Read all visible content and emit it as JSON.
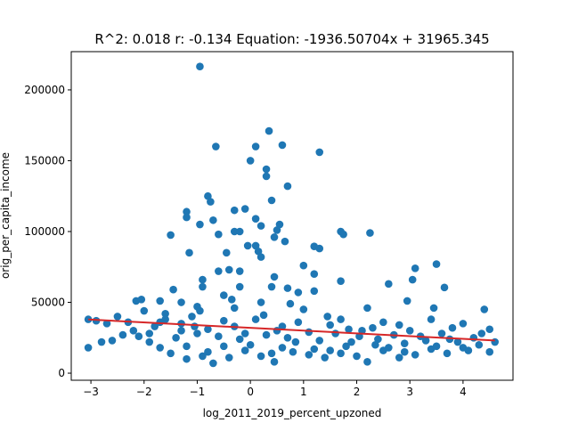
{
  "chart_data": {
    "type": "scatter",
    "title": "R^2: 0.018 r: -0.134 Equation: -1936.50704x + 31965.345",
    "xlabel": "log_2011_2019_percent_upzoned",
    "ylabel": "orig_per_capita_income",
    "xlim": [
      -3.37,
      4.94
    ],
    "ylim": [
      -5000,
      227000
    ],
    "x_ticks": [
      -3,
      -2,
      -1,
      0,
      1,
      2,
      3,
      4
    ],
    "x_tick_labels": [
      "−3",
      "−2",
      "−1",
      "0",
      "1",
      "2",
      "3",
      "4"
    ],
    "y_ticks": [
      0,
      50000,
      100000,
      150000,
      200000
    ],
    "y_tick_labels": [
      "0",
      "50000",
      "100000",
      "150000",
      "200000"
    ],
    "grid": false,
    "legend": "none",
    "colors": {
      "points": "#1f77b4",
      "regression_line": "#d62728"
    },
    "regression": {
      "slope": -1936.50704,
      "intercept": 31965.345,
      "x_range": [
        -3.05,
        4.6
      ]
    },
    "series": [
      {
        "points": [
          [
            -0.95,
            216500
          ],
          [
            -0.65,
            160000
          ],
          [
            0.1,
            160000
          ],
          [
            0.35,
            171000
          ],
          [
            0.6,
            161000
          ],
          [
            0.0,
            150000
          ],
          [
            0.3,
            144000
          ],
          [
            0.3,
            139000
          ],
          [
            1.3,
            156000
          ],
          [
            0.7,
            132000
          ],
          [
            -0.8,
            125000
          ],
          [
            -0.75,
            121000
          ],
          [
            0.4,
            122000
          ],
          [
            -1.2,
            114000
          ],
          [
            -1.2,
            110000
          ],
          [
            -0.7,
            108000
          ],
          [
            -0.3,
            115000
          ],
          [
            -0.1,
            116000
          ],
          [
            0.1,
            109000
          ],
          [
            0.2,
            104000
          ],
          [
            0.55,
            105000
          ],
          [
            -1.5,
            97500
          ],
          [
            -0.95,
            105000
          ],
          [
            -0.6,
            98000
          ],
          [
            -0.3,
            100000
          ],
          [
            -0.2,
            100000
          ],
          [
            0.5,
            101000
          ],
          [
            1.7,
            100000
          ],
          [
            1.75,
            98000
          ],
          [
            2.25,
            99000
          ],
          [
            -0.05,
            90000
          ],
          [
            0.1,
            90000
          ],
          [
            0.45,
            96000
          ],
          [
            0.65,
            93000
          ],
          [
            1.2,
            89500
          ],
          [
            1.3,
            88000
          ],
          [
            -1.15,
            85000
          ],
          [
            -0.45,
            85000
          ],
          [
            0.15,
            86000
          ],
          [
            0.2,
            82000
          ],
          [
            1.0,
            76000
          ],
          [
            3.1,
            74000
          ],
          [
            3.5,
            77000
          ],
          [
            -0.6,
            72000
          ],
          [
            -0.4,
            73000
          ],
          [
            -0.2,
            72000
          ],
          [
            1.2,
            70000
          ],
          [
            3.05,
            66000
          ],
          [
            -0.9,
            66000
          ],
          [
            0.45,
            68000
          ],
          [
            1.7,
            65000
          ],
          [
            2.6,
            63000
          ],
          [
            3.65,
            60500
          ],
          [
            -1.45,
            59000
          ],
          [
            -0.9,
            61000
          ],
          [
            -0.2,
            61000
          ],
          [
            0.4,
            61000
          ],
          [
            0.7,
            60000
          ],
          [
            1.2,
            58000
          ],
          [
            -1.7,
            51000
          ],
          [
            -2.15,
            51000
          ],
          [
            -2.05,
            52000
          ],
          [
            -1.3,
            50000
          ],
          [
            -0.5,
            55000
          ],
          [
            0.9,
            57000
          ],
          [
            2.95,
            51000
          ],
          [
            -3.05,
            38000
          ],
          [
            -2.9,
            37000
          ],
          [
            -2.7,
            35000
          ],
          [
            -2.5,
            40000
          ],
          [
            -2.3,
            36000
          ],
          [
            -2.0,
            44000
          ],
          [
            -1.6,
            42000
          ],
          [
            -1.0,
            47000
          ],
          [
            -0.3,
            46000
          ],
          [
            0.2,
            50000
          ],
          [
            1.0,
            45000
          ],
          [
            1.7,
            38000
          ],
          [
            2.2,
            46000
          ],
          [
            2.5,
            36000
          ],
          [
            3.45,
            46000
          ],
          [
            3.4,
            38000
          ],
          [
            3.8,
            32000
          ],
          [
            4.0,
            35000
          ],
          [
            4.4,
            45000
          ],
          [
            4.5,
            31000
          ],
          [
            -3.05,
            18000
          ],
          [
            -2.8,
            22000
          ],
          [
            -2.6,
            23000
          ],
          [
            -2.4,
            27000
          ],
          [
            -2.1,
            26000
          ],
          [
            -1.9,
            22000
          ],
          [
            -1.7,
            18000
          ],
          [
            -1.5,
            14000
          ],
          [
            -1.2,
            10000
          ],
          [
            -0.9,
            12000
          ],
          [
            -0.7,
            7000
          ],
          [
            -0.4,
            11000
          ],
          [
            -0.1,
            16000
          ],
          [
            0.2,
            12000
          ],
          [
            0.45,
            8000
          ],
          [
            0.8,
            15000
          ],
          [
            1.1,
            13000
          ],
          [
            1.4,
            11000
          ],
          [
            1.7,
            14000
          ],
          [
            2.0,
            12000
          ],
          [
            2.2,
            8000
          ],
          [
            2.5,
            16000
          ],
          [
            2.8,
            11000
          ],
          [
            3.1,
            13000
          ],
          [
            3.4,
            17000
          ],
          [
            3.7,
            14000
          ],
          [
            4.0,
            18000
          ],
          [
            4.3,
            20000
          ],
          [
            4.5,
            15000
          ],
          [
            4.6,
            22000
          ],
          [
            -1.4,
            25000
          ],
          [
            -1.0,
            28000
          ],
          [
            -0.6,
            26000
          ],
          [
            -0.2,
            24000
          ],
          [
            0.3,
            27000
          ],
          [
            0.7,
            25000
          ],
          [
            1.3,
            23000
          ],
          [
            1.9,
            22000
          ],
          [
            2.4,
            24000
          ],
          [
            2.9,
            21000
          ],
          [
            3.3,
            23000
          ],
          [
            3.9,
            22000
          ],
          [
            -1.8,
            33000
          ],
          [
            -1.3,
            35000
          ],
          [
            -0.8,
            31000
          ],
          [
            -0.3,
            33000
          ],
          [
            0.5,
            30000
          ],
          [
            1.1,
            29000
          ],
          [
            1.6,
            28000
          ],
          [
            2.1,
            30000
          ],
          [
            2.7,
            27000
          ],
          [
            3.2,
            26000
          ],
          [
            -1.6,
            38000
          ],
          [
            -1.1,
            40000
          ],
          [
            -0.5,
            37000
          ],
          [
            0.1,
            38000
          ],
          [
            0.9,
            36000
          ],
          [
            1.5,
            34000
          ],
          [
            2.3,
            32000
          ],
          [
            3.0,
            30000
          ],
          [
            3.6,
            28000
          ],
          [
            4.2,
            25000
          ],
          [
            -2.2,
            30000
          ],
          [
            -1.2,
            19000
          ],
          [
            -0.5,
            19000
          ],
          [
            0.0,
            20000
          ],
          [
            0.6,
            18000
          ],
          [
            1.2,
            17000
          ],
          [
            1.8,
            19000
          ],
          [
            2.6,
            18000
          ],
          [
            3.5,
            19000
          ],
          [
            4.1,
            16000
          ],
          [
            -0.8,
            15000
          ],
          [
            0.4,
            14000
          ],
          [
            1.5,
            16000
          ],
          [
            2.9,
            15000
          ],
          [
            -1.9,
            28000
          ],
          [
            -0.1,
            28000
          ],
          [
            0.85,
            22000
          ],
          [
            2.05,
            26000
          ],
          [
            3.75,
            24000
          ],
          [
            -1.3,
            30000
          ],
          [
            0.6,
            33000
          ],
          [
            1.85,
            31000
          ],
          [
            4.35,
            28000
          ],
          [
            -1.7,
            36000
          ],
          [
            -0.95,
            44000
          ],
          [
            0.25,
            41000
          ],
          [
            1.45,
            40000
          ],
          [
            2.8,
            34000
          ],
          [
            -0.35,
            52000
          ],
          [
            0.75,
            49000
          ],
          [
            -1.05,
            33000
          ],
          [
            2.35,
            20000
          ]
        ]
      }
    ]
  }
}
